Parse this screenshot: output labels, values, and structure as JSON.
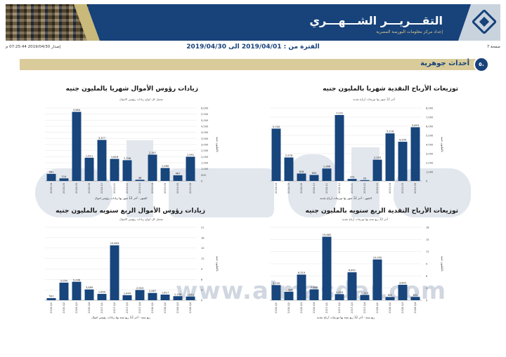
{
  "header": {
    "title": "التقـــريـــر الشـــهـــري",
    "subtitle": "إعداد مركز معلومات البورصة المصرية"
  },
  "meta": {
    "page": "صفحة 7",
    "period_label": "الفترة من : 2019/04/01 الى 2019/04/30",
    "issue": "إصدار 2019/04/30 07:25:44 م"
  },
  "section": {
    "number": "٥.",
    "title": "أحداث جوهرية"
  },
  "watermark": {
    "text": "المصدر",
    "url": "www.almasdar.com"
  },
  "chart_data": [
    {
      "id": "monthly-dividends",
      "type": "bar",
      "title": "توزيعات الأرباح النقدية شهريا بالمليون جنيه",
      "subtitle": "آخر 12 شهر بها توزيعات أرباح نقدية",
      "xlabel": "الشهر - آخر 12 شهر بها توزيعات أرباح نقدية",
      "ylabel": "بالمليون جنيه",
      "categories": [
        "2018-04",
        "2018-05",
        "2018-06",
        "2018-10",
        "2018-11",
        "2018-12",
        "2019-01",
        "2019-02",
        "2019-03",
        "2019-04",
        "2019-05",
        "2019-06"
      ],
      "values": [
        5740,
        2578,
        816,
        659,
        1366,
        7231,
        223,
        93,
        2333,
        5218,
        4299,
        5893
      ],
      "value_labels": [
        "5,740",
        "2,578",
        "816",
        "659",
        "1,366",
        "7,231",
        "223",
        "93",
        "2,333",
        "5,218",
        "4,299",
        "5,893"
      ],
      "ylim": [
        0,
        8000
      ],
      "yticks": [
        "0",
        "1,000",
        "2,000",
        "3,000",
        "4,000",
        "5,000",
        "6,000",
        "7,000",
        "8,000"
      ],
      "color": "#17457c"
    },
    {
      "id": "monthly-capital-increase",
      "type": "bar",
      "title": "زيادات رؤوس الأموال شهريا بالمليون جنيه",
      "subtitle": "تشمل كل انواع زيادات رؤوس الاموال",
      "xlabel": "الشهر - آخر 12 شهر بها زيادات رؤوس اموال",
      "ylabel": "بالمليون جنيه",
      "categories": [
        "2018-04",
        "2018-05",
        "2018-06",
        "2018-08",
        "2018-12",
        "2019-01",
        "2019-02",
        "2019-03",
        "2019-04",
        "2019-05",
        "2019-06",
        "2019-08"
      ],
      "values": [
        581,
        214,
        5684,
        1911,
        3377,
        1816,
        1708,
        98,
        2167,
        1066,
        467,
        1991
      ],
      "value_labels": [
        "581",
        "214",
        "5,684",
        "1,911",
        "3,377",
        "1,816",
        "1,708",
        "98",
        "2,167",
        "1,066",
        "467",
        "1,991"
      ],
      "ylim": [
        0,
        6000
      ],
      "yticks": [
        "0",
        "500",
        "1,000",
        "1,500",
        "2,000",
        "2,500",
        "3,000",
        "3,500",
        "4,000",
        "4,500",
        "5,000",
        "5,500",
        "6,000"
      ],
      "color": "#17457c"
    },
    {
      "id": "quarterly-dividends",
      "type": "bar",
      "title": "توزيعات الأرباح النقدية الربع سنويه بالمليون جنيه",
      "subtitle": "آخر 12 ربع سنة بها توزيعات أرباح نقدية",
      "xlabel": "ربع سنة - آخر 12 ربع سنة بها توزيعات أرباح نقدية",
      "ylabel": "بالمليون جنيه",
      "categories": [
        "2016-Q1",
        "2016-Q2",
        "2016-Q3",
        "2016-Q4",
        "2017-Q1",
        "2017-Q2",
        "2017-Q3",
        "2017-Q4",
        "2018-Q1",
        "2018-Q2",
        "2018-Q3",
        "2018-Q4"
      ],
      "values": [
        3740,
        2084,
        6319,
        2668,
        15662,
        1495,
        6891,
        1315,
        10050,
        802,
        3802,
        812
      ],
      "value_labels": [
        "3,740",
        "2,084",
        "6,319",
        "2,668",
        "15,662",
        "1,495",
        "6,891",
        "1,315",
        "10,050",
        "802",
        "3,802",
        "812"
      ],
      "ylim": [
        0,
        18000
      ],
      "yticks": [
        "0",
        "3",
        "6",
        "9",
        "12",
        "15",
        "18"
      ],
      "color": "#17457c"
    },
    {
      "id": "quarterly-capital-increase",
      "type": "bar",
      "title": "زيادات رؤوس الأموال الربع سنويه بالمليون جنيه",
      "subtitle": "تشمل كل انواع زيادات رؤوس الاموال",
      "xlabel": "ربع سنة - آخر 12 ربع سنة بها زيادات رؤوس اموال",
      "ylabel": "بالمليون جنيه",
      "categories": [
        "2016-Q1",
        "2016-Q2",
        "2016-Q3",
        "2016-Q4",
        "2017-Q1",
        "2017-Q2",
        "2017-Q3",
        "2017-Q4",
        "2018-Q1",
        "2018-Q2",
        "2018-Q3",
        "2018-Q4"
      ],
      "values": [
        591,
        5050,
        5296,
        3089,
        1809,
        15804,
        1444,
        2943,
        2087,
        1617,
        1159,
        1051
      ],
      "value_labels": [
        "591",
        "5,050",
        "5,296",
        "3,089",
        "1,809",
        "15,804",
        "1,444",
        "2,943",
        "2,087",
        "1,617",
        "1,159",
        "1,051"
      ],
      "ylim": [
        0,
        21000
      ],
      "yticks": [
        "0",
        "3",
        "6",
        "9",
        "12",
        "15",
        "18",
        "21"
      ],
      "color": "#17457c"
    }
  ]
}
